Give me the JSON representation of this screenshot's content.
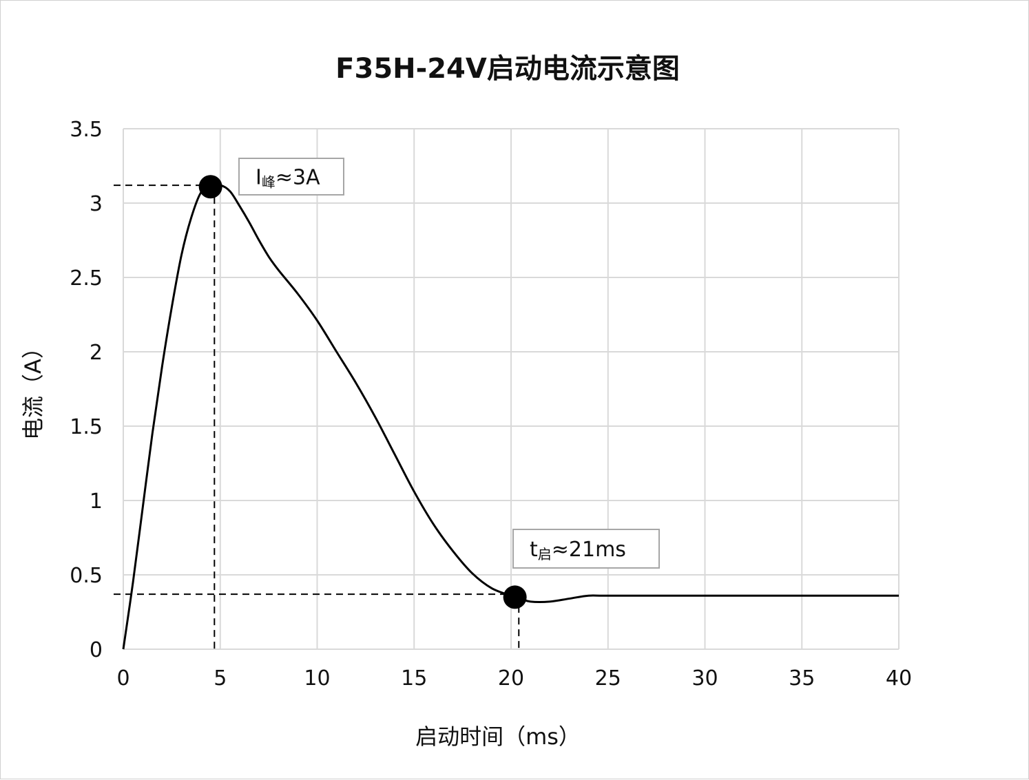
{
  "chart_data": {
    "type": "line",
    "title": "F35H-24V启动电流示意图",
    "xlabel": "启动时间（ms）",
    "ylabel": "电流（A）",
    "xlim": [
      0,
      40
    ],
    "ylim": [
      0,
      3.5
    ],
    "x_ticks": [
      "0",
      "5",
      "10",
      "15",
      "20",
      "25",
      "30",
      "35",
      "40"
    ],
    "y_ticks": [
      "0",
      "0.5",
      "1",
      "1.5",
      "2",
      "2.5",
      "3",
      "3.5"
    ],
    "grid": true,
    "series": [
      {
        "x": [
          0,
          0.5,
          1,
          1.5,
          2,
          2.5,
          3,
          3.5,
          4,
          4.5,
          5,
          5.5,
          6,
          6.5,
          7,
          7.5,
          8,
          9,
          10,
          11,
          12,
          13,
          14,
          15,
          16,
          17,
          18,
          19,
          20,
          20.5,
          21,
          22,
          23,
          24,
          25,
          30,
          35,
          40
        ],
        "y": [
          0,
          0.45,
          0.95,
          1.45,
          1.9,
          2.3,
          2.65,
          2.9,
          3.07,
          3.11,
          3.12,
          3.08,
          2.98,
          2.87,
          2.75,
          2.64,
          2.55,
          2.39,
          2.21,
          2.0,
          1.79,
          1.56,
          1.31,
          1.06,
          0.84,
          0.66,
          0.51,
          0.41,
          0.36,
          0.34,
          0.32,
          0.32,
          0.34,
          0.36,
          0.36,
          0.36,
          0.36,
          0.36
        ]
      }
    ],
    "markers": [
      {
        "x": 4.5,
        "y": 3.11
      },
      {
        "x": 20.2,
        "y": 0.35
      }
    ],
    "annotations": [
      {
        "main": "I",
        "sub": "峰",
        "rest": "≈3A"
      },
      {
        "main": "t",
        "sub": "启",
        "rest": "≈21ms"
      }
    ],
    "reference_lines": [
      {
        "x": 4.7,
        "y": 3.12
      },
      {
        "x": 20.4,
        "y": 0.37
      }
    ],
    "colors": {
      "line": "#000000",
      "grid": "#d9d9d9",
      "marker": "#000000"
    }
  }
}
